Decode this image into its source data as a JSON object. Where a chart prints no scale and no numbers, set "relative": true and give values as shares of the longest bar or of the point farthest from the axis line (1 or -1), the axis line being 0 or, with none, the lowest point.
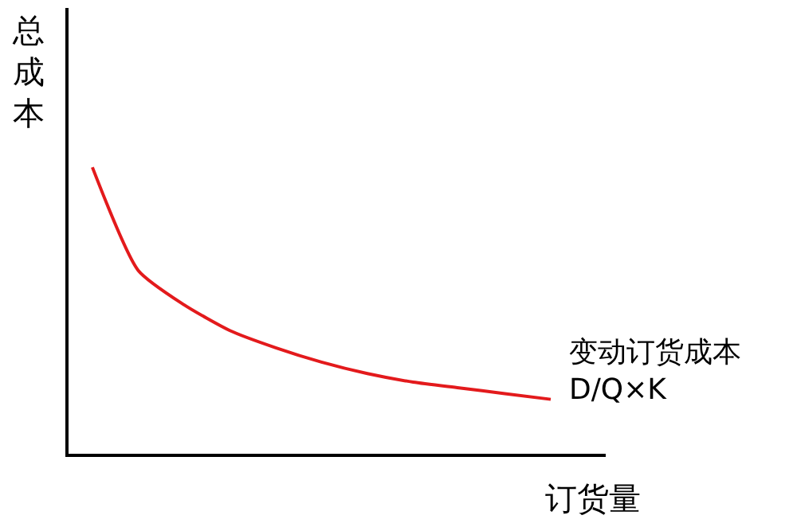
{
  "chart_data": {
    "type": "line",
    "relative": true,
    "ylabel": "总成本",
    "xlabel": "订货量",
    "categories": [
      null,
      null,
      null,
      null,
      null,
      null,
      null,
      null,
      null,
      null,
      null
    ],
    "series": [
      {
        "color": "#e31a1c",
        "values": [
          1,
          0.64,
          0.52,
          0.43,
          0.37,
          0.32,
          0.28,
          0.25,
          0.23,
          0.21,
          0.19
        ]
      }
    ],
    "annotations": [
      "变动订货成本\nD/Q×K"
    ],
    "marker": "none",
    "line_style": "solid"
  }
}
